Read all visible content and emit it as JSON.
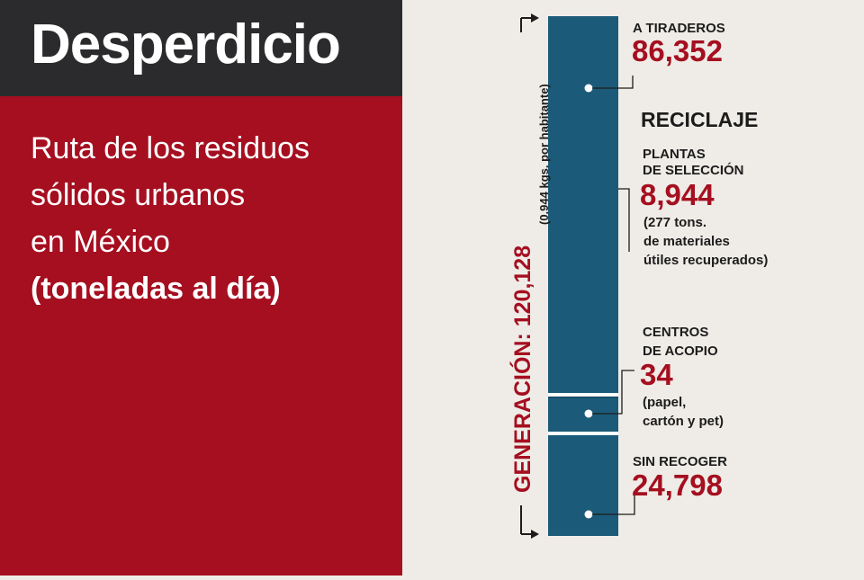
{
  "header": {
    "title": "Desperdicio",
    "subtitle_lines": [
      "Ruta de los residuos",
      "sólidos urbanos",
      "en México",
      "(toneladas al día)"
    ]
  },
  "colors": {
    "header_bg": "#2b2b2e",
    "panel_red": "#a50f20",
    "bar_blue": "#1b5a78",
    "value_red": "#a50f20",
    "page_bg": "#efece7"
  },
  "chart_data": {
    "type": "bar",
    "orientation": "vertical-stacked",
    "total_label": "GENERACIÓN: 120,128",
    "total_value": 120128,
    "total_note": "(0.944 kgs. por habitante)",
    "section_heading": "RECICLAJE",
    "segments": [
      {
        "label_lines": [
          "A TIRADEROS"
        ],
        "value": 86352,
        "value_text": "86,352",
        "note_lines": []
      },
      {
        "label_lines": [
          "PLANTAS",
          "DE SELECCIÓN"
        ],
        "value": 8944,
        "value_text": "8,944",
        "note_lines": [
          "(277 tons.",
          "de materiales",
          "útiles recuperados)"
        ]
      },
      {
        "label_lines": [
          "CENTROS",
          "DE ACOPIO"
        ],
        "value": 34,
        "value_text": "34",
        "note_lines": [
          "(papel,",
          "cartón y pet)"
        ]
      },
      {
        "label_lines": [
          "SIN RECOGER"
        ],
        "value": 24798,
        "value_text": "24,798",
        "note_lines": []
      }
    ]
  }
}
